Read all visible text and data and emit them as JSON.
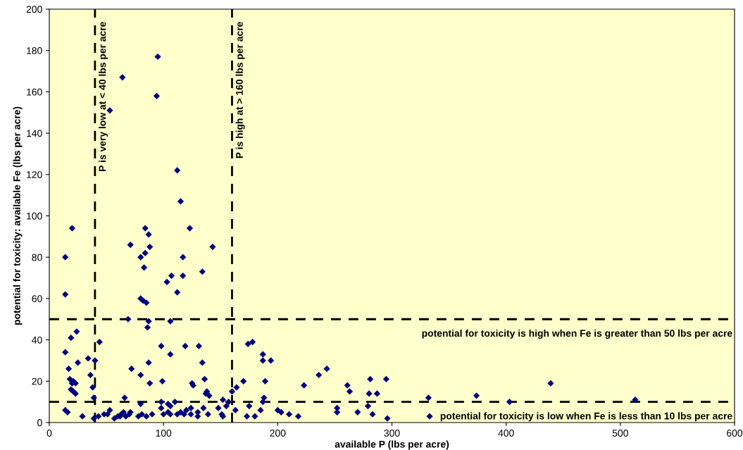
{
  "chart_data": {
    "type": "scatter",
    "xlabel": "available P (lbs per acre)",
    "ylabel": "potential for toxicity: available Fe (lbs per acre)",
    "xlim": [
      0,
      600
    ],
    "xticks": [
      0,
      100,
      200,
      300,
      400,
      500,
      600
    ],
    "ylim": [
      0,
      200
    ],
    "yticks": [
      0,
      20,
      40,
      60,
      80,
      100,
      120,
      140,
      160,
      180,
      200
    ],
    "grid": false,
    "marker": "diamond",
    "series": [
      {
        "color": "#000080",
        "x": [
          95,
          64,
          94,
          53,
          112,
          115,
          20,
          123,
          84,
          87,
          71,
          88,
          143,
          84,
          80,
          117,
          14,
          83,
          134,
          117,
          107,
          103,
          112,
          14,
          80,
          82,
          85,
          69,
          87,
          106,
          86,
          44,
          24,
          19,
          98,
          119,
          131,
          106,
          14,
          40,
          134,
          87,
          25,
          34,
          72,
          136,
          17,
          88,
          18,
          21,
          20,
          23,
          36,
          80,
          125,
          126,
          38,
          99,
          138,
          140,
          19,
          21,
          23,
          39,
          66,
          98,
          104,
          110,
          106,
          152,
          155,
          157,
          160,
          164,
          170,
          174,
          178,
          187,
          187,
          194,
          189,
          188,
          187,
          175,
          163,
          185,
          180,
          173,
          203,
          200,
          210,
          218,
          223,
          236,
          243,
          252,
          252,
          261,
          263,
          270,
          279,
          280,
          281,
          283,
          287,
          295,
          296,
          332,
          333,
          374,
          403,
          439,
          513,
          14,
          16,
          29,
          39,
          43,
          48,
          51,
          53,
          60,
          63,
          65,
          67,
          70,
          71,
          78,
          80,
          81,
          85,
          90,
          98,
          100,
          104,
          106,
          112,
          115,
          118,
          120,
          124,
          124,
          130,
          130,
          135,
          139,
          137,
          148,
          151,
          152,
          57,
          62
        ],
        "values": [
          177,
          167,
          158,
          151,
          122,
          107,
          94,
          94,
          94,
          91,
          86,
          85,
          85,
          82,
          80,
          80,
          80,
          75,
          73,
          71,
          71,
          68,
          63,
          62,
          60,
          59,
          58,
          50,
          49,
          49,
          46,
          39,
          44,
          41,
          37,
          37,
          37,
          33,
          34,
          30,
          29,
          29,
          29,
          31,
          26,
          21,
          26,
          19,
          21,
          20,
          19,
          19,
          23,
          23,
          19,
          18,
          17,
          20,
          15,
          13,
          16,
          15,
          14,
          12,
          12,
          10,
          9,
          10,
          8,
          11,
          8,
          10,
          15,
          17,
          20,
          38,
          39,
          33,
          30,
          30,
          20,
          12,
          10,
          8,
          6,
          6,
          3,
          3,
          5,
          6,
          4,
          3,
          18,
          23,
          26,
          7,
          5,
          18,
          15,
          5,
          8,
          14,
          21,
          4,
          14,
          21,
          2,
          12,
          3,
          13,
          10,
          19,
          11,
          6,
          5,
          3,
          2,
          3,
          4,
          4,
          6,
          3,
          4,
          5,
          3,
          4,
          5,
          3,
          9,
          4,
          3,
          4,
          7,
          4,
          5,
          4,
          4,
          5,
          4,
          6,
          4,
          7,
          3,
          5,
          7,
          4,
          14,
          7,
          4,
          3,
          2,
          3
        ]
      }
    ],
    "ref_lines": [
      {
        "axis": "x",
        "value": 40,
        "label": "P is very low at < 40 lbs per acre",
        "color": "#000000",
        "line_style": "dashed"
      },
      {
        "axis": "x",
        "value": 160,
        "label": "P is high at > 160 lbs per acre",
        "color": "#000000",
        "line_style": "dashed"
      },
      {
        "axis": "y",
        "value": 50,
        "label": "potential for toxicity is high when Fe is greater than 50 lbs per acre",
        "color": "#000000",
        "line_style": "dashed"
      },
      {
        "axis": "y",
        "value": 10,
        "label": "potential for toxicity is low when Fe is less than 10 lbs per acre",
        "color": "#000000",
        "line_style": "dashed"
      }
    ]
  }
}
